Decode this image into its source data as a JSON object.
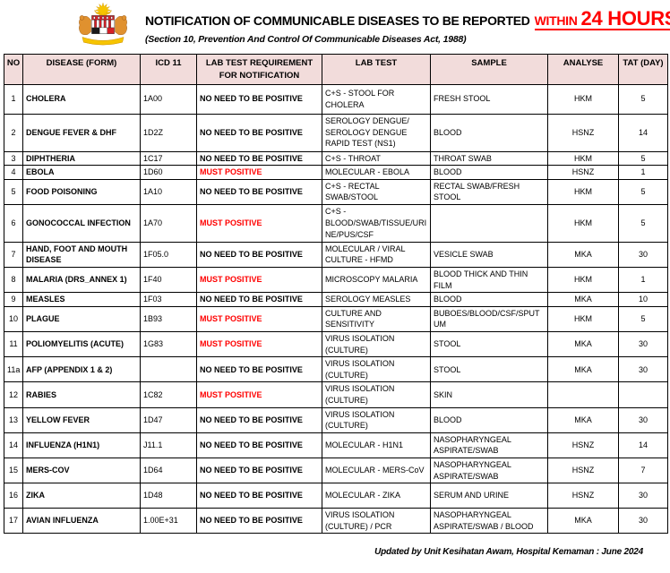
{
  "header": {
    "title_black": "NOTIFICATION OF COMMUNICABLE DISEASES TO BE REPORTED",
    "title_red_small": "WITHIN",
    "title_red_big": "24 HOURS",
    "subtitle": "(Section 10, Prevention And Control Of Communicable Diseases Act, 1988)",
    "logo_icon": "malaysia-coat-of-arms"
  },
  "table": {
    "columns": [
      "NO",
      "DISEASE (FORM)",
      "ICD 11",
      "LAB TEST REQUIREMENT FOR NOTIFICATION",
      "LAB TEST",
      "SAMPLE",
      "ANALYSE",
      "TAT (DAY)"
    ],
    "rows": [
      {
        "no": "1",
        "disease": "CHOLERA",
        "icd": "1A00",
        "requirement": "NO NEED TO BE POSITIVE",
        "lab_test": "C+S - STOOL FOR CHOLERA",
        "sample": "FRESH STOOL",
        "analyse": "HKM",
        "tat": "5"
      },
      {
        "no": "2",
        "disease": "DENGUE FEVER & DHF",
        "icd": "1D2Z",
        "requirement": "NO NEED TO BE POSITIVE",
        "lab_test": "SEROLOGY DENGUE/ SEROLOGY DENGUE RAPID TEST (NS1)",
        "sample": "BLOOD",
        "analyse": "HSNZ",
        "tat": "14"
      },
      {
        "no": "3",
        "disease": "DIPHTHERIA",
        "icd": "1C17",
        "requirement": "NO NEED TO BE POSITIVE",
        "lab_test": "C+S - THROAT",
        "sample": "THROAT SWAB",
        "analyse": "HKM",
        "tat": "5"
      },
      {
        "no": "4",
        "disease": "EBOLA",
        "icd": "1D60",
        "requirement": "MUST POSITIVE",
        "lab_test": "MOLECULAR - EBOLA",
        "sample": "BLOOD",
        "analyse": "HSNZ",
        "tat": "1"
      },
      {
        "no": "5",
        "disease": "FOOD POISONING",
        "icd": "1A10",
        "requirement": "NO NEED TO BE POSITIVE",
        "lab_test": "C+S - RECTAL SWAB/STOOL",
        "sample": "RECTAL SWAB/FRESH STOOL",
        "analyse": "HKM",
        "tat": "5"
      },
      {
        "no": "6",
        "disease": "GONOCOCCAL INFECTION",
        "icd": "1A70",
        "requirement": "MUST POSITIVE",
        "lab_test": "C+S - BLOOD/SWAB/TISSUE/URINE/PUS/CSF",
        "sample": "",
        "analyse": "HKM",
        "tat": "5"
      },
      {
        "no": "7",
        "disease": "HAND, FOOT AND MOUTH DISEASE",
        "icd": "1F05.0",
        "requirement": "NO NEED TO BE POSITIVE",
        "lab_test": "MOLECULAR / VIRAL CULTURE - HFMD",
        "sample": "VESICLE SWAB",
        "analyse": "MKA",
        "tat": "30"
      },
      {
        "no": "8",
        "disease": "MALARIA (DRS_ANNEX 1)",
        "icd": "1F40",
        "requirement": "MUST POSITIVE",
        "lab_test": "MICROSCOPY MALARIA",
        "sample": "BLOOD THICK AND THIN FILM",
        "analyse": "HKM",
        "tat": "1"
      },
      {
        "no": "9",
        "disease": "MEASLES",
        "icd": "1F03",
        "requirement": "NO NEED TO BE POSITIVE",
        "lab_test": "SEROLOGY MEASLES",
        "sample": "BLOOD",
        "analyse": "MKA",
        "tat": "10"
      },
      {
        "no": "10",
        "disease": "PLAGUE",
        "icd": "1B93",
        "requirement": "MUST POSITIVE",
        "lab_test": "CULTURE AND SENSITIVITY",
        "sample": "BUBOES/BLOOD/CSF/SPUTUM",
        "analyse": "HKM",
        "tat": "5"
      },
      {
        "no": "11",
        "disease": "POLIOMYELITIS (ACUTE)",
        "icd": "1G83",
        "requirement": "MUST POSITIVE",
        "lab_test": "VIRUS ISOLATION (CULTURE)",
        "sample": "STOOL",
        "analyse": "MKA",
        "tat": "30"
      },
      {
        "no": "11a",
        "disease": "AFP (APPENDIX 1 & 2)",
        "icd": "",
        "requirement": "NO NEED TO BE POSITIVE",
        "lab_test": "VIRUS ISOLATION (CULTURE)",
        "sample": "STOOL",
        "analyse": "MKA",
        "tat": "30"
      },
      {
        "no": "12",
        "disease": "RABIES",
        "icd": "1C82",
        "requirement": "MUST POSITIVE",
        "lab_test": "VIRUS ISOLATION (CULTURE)",
        "sample": "SKIN",
        "analyse": "",
        "tat": ""
      },
      {
        "no": "13",
        "disease": "YELLOW FEVER",
        "icd": "1D47",
        "requirement": "NO NEED TO BE POSITIVE",
        "lab_test": "VIRUS ISOLATION (CULTURE)",
        "sample": "BLOOD",
        "analyse": "MKA",
        "tat": "30"
      },
      {
        "no": "14",
        "disease": "INFLUENZA (H1N1)",
        "icd": "J11.1",
        "requirement": "NO NEED TO BE POSITIVE",
        "lab_test": "MOLECULAR - H1N1",
        "sample": "NASOPHARYNGEAL ASPIRATE/SWAB",
        "analyse": "HSNZ",
        "tat": "14"
      },
      {
        "no": "15",
        "disease": "MERS-COV",
        "icd": "1D64",
        "requirement": "NO NEED TO BE POSITIVE",
        "lab_test": "MOLECULAR - MERS-CoV",
        "sample": "NASOPHARYNGEAL ASPIRATE/SWAB",
        "analyse": "HSNZ",
        "tat": "7"
      },
      {
        "no": "16",
        "disease": "ZIKA",
        "icd": "1D48",
        "requirement": "NO NEED TO BE POSITIVE",
        "lab_test": "MOLECULAR - ZIKA",
        "sample": "SERUM AND URINE",
        "analyse": "HSNZ",
        "tat": "30"
      },
      {
        "no": "17",
        "disease": "AVIAN INFLUENZA",
        "icd": "1.00E+31",
        "requirement": "NO NEED TO BE POSITIVE",
        "lab_test": "VIRUS ISOLATION (CULTURE) / PCR",
        "sample": "NASOPHARYNGEAL ASPIRATE/SWAB / BLOOD",
        "analyse": "MKA",
        "tat": "30"
      }
    ]
  },
  "footer": {
    "updated": "Updated by Unit Kesihatan Awam, Hospital Kemaman : June 2024"
  },
  "colors": {
    "accent_red": "#ff0000",
    "table_header_bg": "#f2dcdb",
    "border_black": "#000000"
  }
}
